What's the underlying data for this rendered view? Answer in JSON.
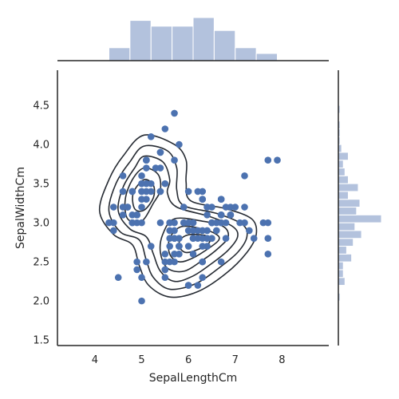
{
  "chart_data": {
    "type": "scatter",
    "title": "",
    "xlabel": "SepalLengthCm",
    "ylabel": "SepalWidthCm",
    "xlim": [
      3.2,
      9.0
    ],
    "ylim": [
      1.43,
      4.95
    ],
    "x_ticks": [
      4,
      5,
      6,
      7,
      8
    ],
    "y_ticks": [
      1.5,
      2.0,
      2.5,
      3.0,
      3.5,
      4.0,
      4.5
    ],
    "grid": false,
    "colors": {
      "points": "#4c72b0",
      "histogram": "#b3c2dd",
      "contours": "#262b33",
      "axes": "#262626"
    },
    "points": [
      [
        5.1,
        3.5
      ],
      [
        4.9,
        3.0
      ],
      [
        4.7,
        3.2
      ],
      [
        4.6,
        3.1
      ],
      [
        5.0,
        3.6
      ],
      [
        5.4,
        3.9
      ],
      [
        4.6,
        3.4
      ],
      [
        5.0,
        3.4
      ],
      [
        4.4,
        2.9
      ],
      [
        4.9,
        3.1
      ],
      [
        5.4,
        3.7
      ],
      [
        4.8,
        3.4
      ],
      [
        4.8,
        3.0
      ],
      [
        4.3,
        3.0
      ],
      [
        5.8,
        4.0
      ],
      [
        5.7,
        4.4
      ],
      [
        5.4,
        3.9
      ],
      [
        5.1,
        3.5
      ],
      [
        5.7,
        3.8
      ],
      [
        5.1,
        3.8
      ],
      [
        5.4,
        3.4
      ],
      [
        5.1,
        3.7
      ],
      [
        4.6,
        3.6
      ],
      [
        5.1,
        3.3
      ],
      [
        4.8,
        3.4
      ],
      [
        5.0,
        3.0
      ],
      [
        5.0,
        3.4
      ],
      [
        5.2,
        3.5
      ],
      [
        5.2,
        3.4
      ],
      [
        4.7,
        3.2
      ],
      [
        4.8,
        3.1
      ],
      [
        5.4,
        3.4
      ],
      [
        5.2,
        4.1
      ],
      [
        5.5,
        4.2
      ],
      [
        4.9,
        3.1
      ],
      [
        5.0,
        3.2
      ],
      [
        5.5,
        3.5
      ],
      [
        4.9,
        3.1
      ],
      [
        4.4,
        3.0
      ],
      [
        5.1,
        3.4
      ],
      [
        5.0,
        3.5
      ],
      [
        4.5,
        2.3
      ],
      [
        4.4,
        3.2
      ],
      [
        5.0,
        3.5
      ],
      [
        5.1,
        3.8
      ],
      [
        4.8,
        3.0
      ],
      [
        5.1,
        3.8
      ],
      [
        4.6,
        3.2
      ],
      [
        5.3,
        3.7
      ],
      [
        5.0,
        3.3
      ],
      [
        7.0,
        3.2
      ],
      [
        6.4,
        3.2
      ],
      [
        6.9,
        3.1
      ],
      [
        5.5,
        2.3
      ],
      [
        6.5,
        2.8
      ],
      [
        5.7,
        2.8
      ],
      [
        6.3,
        3.3
      ],
      [
        4.9,
        2.4
      ],
      [
        6.6,
        2.9
      ],
      [
        5.2,
        2.7
      ],
      [
        5.0,
        2.0
      ],
      [
        5.9,
        3.0
      ],
      [
        6.0,
        2.2
      ],
      [
        6.1,
        2.9
      ],
      [
        5.6,
        2.9
      ],
      [
        6.7,
        3.1
      ],
      [
        5.6,
        3.0
      ],
      [
        5.8,
        2.7
      ],
      [
        6.2,
        2.2
      ],
      [
        5.6,
        2.5
      ],
      [
        5.9,
        3.2
      ],
      [
        6.1,
        2.8
      ],
      [
        6.3,
        2.5
      ],
      [
        6.1,
        2.8
      ],
      [
        6.4,
        2.9
      ],
      [
        6.6,
        3.0
      ],
      [
        6.8,
        2.8
      ],
      [
        6.7,
        3.0
      ],
      [
        6.0,
        2.9
      ],
      [
        5.7,
        2.6
      ],
      [
        5.5,
        2.4
      ],
      [
        5.5,
        2.4
      ],
      [
        5.8,
        2.7
      ],
      [
        6.0,
        2.7
      ],
      [
        5.4,
        3.0
      ],
      [
        6.0,
        3.4
      ],
      [
        6.7,
        3.1
      ],
      [
        6.3,
        2.3
      ],
      [
        5.6,
        3.0
      ],
      [
        5.5,
        2.5
      ],
      [
        5.5,
        2.6
      ],
      [
        6.1,
        3.0
      ],
      [
        5.8,
        2.6
      ],
      [
        5.0,
        2.3
      ],
      [
        5.6,
        2.7
      ],
      [
        5.7,
        3.0
      ],
      [
        5.7,
        2.9
      ],
      [
        6.2,
        2.9
      ],
      [
        5.1,
        2.5
      ],
      [
        5.7,
        2.8
      ],
      [
        6.3,
        3.3
      ],
      [
        5.8,
        2.7
      ],
      [
        7.1,
        3.0
      ],
      [
        6.3,
        2.9
      ],
      [
        6.5,
        3.0
      ],
      [
        7.6,
        3.0
      ],
      [
        4.9,
        2.5
      ],
      [
        7.3,
        2.9
      ],
      [
        6.7,
        2.5
      ],
      [
        7.2,
        3.6
      ],
      [
        6.5,
        3.2
      ],
      [
        6.4,
        2.7
      ],
      [
        6.8,
        3.0
      ],
      [
        5.7,
        2.5
      ],
      [
        5.8,
        2.8
      ],
      [
        6.4,
        3.2
      ],
      [
        6.5,
        3.0
      ],
      [
        7.7,
        3.8
      ],
      [
        7.7,
        2.6
      ],
      [
        6.0,
        2.2
      ],
      [
        6.9,
        3.2
      ],
      [
        5.6,
        2.8
      ],
      [
        7.7,
        2.8
      ],
      [
        6.3,
        2.7
      ],
      [
        6.7,
        3.3
      ],
      [
        7.2,
        3.2
      ],
      [
        6.2,
        2.8
      ],
      [
        6.1,
        3.0
      ],
      [
        6.4,
        2.8
      ],
      [
        7.2,
        3.0
      ],
      [
        7.4,
        2.8
      ],
      [
        7.9,
        3.8
      ],
      [
        6.4,
        2.8
      ],
      [
        6.3,
        2.8
      ],
      [
        6.1,
        2.6
      ],
      [
        7.7,
        3.0
      ],
      [
        6.3,
        3.4
      ],
      [
        6.4,
        3.1
      ],
      [
        6.0,
        3.0
      ],
      [
        6.9,
        3.1
      ],
      [
        6.7,
        3.1
      ],
      [
        6.9,
        3.1
      ],
      [
        5.8,
        2.7
      ],
      [
        6.8,
        3.2
      ],
      [
        6.7,
        3.3
      ],
      [
        6.7,
        3.0
      ],
      [
        6.3,
        2.5
      ],
      [
        6.5,
        3.0
      ],
      [
        6.2,
        3.4
      ],
      [
        5.9,
        3.0
      ]
    ],
    "x_histogram": {
      "bins": [
        [
          4.3,
          4.75,
          9
        ],
        [
          4.75,
          5.2,
          28
        ],
        [
          5.2,
          5.65,
          24
        ],
        [
          5.65,
          6.1,
          24
        ],
        [
          6.1,
          6.55,
          30
        ],
        [
          6.55,
          7.0,
          21
        ],
        [
          7.0,
          7.45,
          9
        ],
        [
          7.45,
          7.9,
          5
        ]
      ]
    },
    "y_histogram": {
      "bins": [
        [
          2.0,
          2.1,
          1
        ],
        [
          2.1,
          2.2,
          0
        ],
        [
          2.2,
          2.3,
          4
        ],
        [
          2.3,
          2.4,
          3
        ],
        [
          2.4,
          2.5,
          3
        ],
        [
          2.5,
          2.6,
          8
        ],
        [
          2.6,
          2.7,
          5
        ],
        [
          2.7,
          2.8,
          9
        ],
        [
          2.8,
          2.9,
          14
        ],
        [
          2.9,
          3.0,
          10
        ],
        [
          3.0,
          3.1,
          26
        ],
        [
          3.1,
          3.2,
          11
        ],
        [
          3.2,
          3.3,
          13
        ],
        [
          3.3,
          3.4,
          6
        ],
        [
          3.4,
          3.5,
          12
        ],
        [
          3.5,
          3.6,
          6
        ],
        [
          3.6,
          3.7,
          4
        ],
        [
          3.7,
          3.8,
          3
        ],
        [
          3.8,
          3.9,
          6
        ],
        [
          3.9,
          4.0,
          2
        ],
        [
          4.0,
          4.1,
          1
        ],
        [
          4.1,
          4.2,
          1
        ],
        [
          4.2,
          4.3,
          1
        ],
        [
          4.3,
          4.4,
          0
        ],
        [
          4.4,
          4.5,
          1
        ]
      ]
    },
    "density_contours": [
      [
        [
          5.05,
          4.12
        ],
        [
          5.7,
          4.0
        ],
        [
          5.95,
          3.8
        ],
        [
          5.95,
          3.52
        ],
        [
          6.05,
          3.28
        ],
        [
          6.8,
          3.18
        ],
        [
          7.35,
          3.05
        ],
        [
          7.45,
          2.85
        ],
        [
          7.25,
          2.62
        ],
        [
          6.8,
          2.35
        ],
        [
          6.2,
          2.12
        ],
        [
          5.6,
          2.05
        ],
        [
          5.15,
          2.2
        ],
        [
          4.95,
          2.45
        ],
        [
          4.8,
          2.72
        ],
        [
          4.4,
          2.85
        ],
        [
          4.1,
          3.15
        ],
        [
          4.3,
          3.55
        ],
        [
          4.6,
          3.85
        ]
      ],
      [
        [
          5.05,
          3.98
        ],
        [
          5.55,
          3.92
        ],
        [
          5.75,
          3.7
        ],
        [
          5.75,
          3.42
        ],
        [
          5.9,
          3.22
        ],
        [
          6.6,
          3.12
        ],
        [
          7.15,
          2.98
        ],
        [
          7.25,
          2.82
        ],
        [
          7.05,
          2.62
        ],
        [
          6.65,
          2.42
        ],
        [
          6.15,
          2.22
        ],
        [
          5.6,
          2.15
        ],
        [
          5.25,
          2.3
        ],
        [
          5.1,
          2.52
        ],
        [
          4.95,
          2.78
        ],
        [
          4.55,
          2.88
        ],
        [
          4.3,
          3.15
        ],
        [
          4.45,
          3.5
        ],
        [
          4.75,
          3.78
        ]
      ],
      [
        [
          5.05,
          3.85
        ],
        [
          5.45,
          3.78
        ],
        [
          5.6,
          3.55
        ],
        [
          5.55,
          3.38
        ],
        [
          5.75,
          3.2
        ],
        [
          6.45,
          3.08
        ],
        [
          6.95,
          2.95
        ],
        [
          7.05,
          2.82
        ],
        [
          6.85,
          2.65
        ],
        [
          6.5,
          2.48
        ],
        [
          6.1,
          2.32
        ],
        [
          5.7,
          2.25
        ],
        [
          5.4,
          2.38
        ],
        [
          5.25,
          2.6
        ],
        [
          5.1,
          2.82
        ],
        [
          4.75,
          2.92
        ],
        [
          4.5,
          3.15
        ],
        [
          4.6,
          3.45
        ],
        [
          4.85,
          3.7
        ]
      ],
      [
        [
          5.05,
          3.7
        ],
        [
          5.35,
          3.62
        ],
        [
          5.4,
          3.42
        ],
        [
          5.25,
          3.25
        ],
        [
          5.0,
          3.02
        ],
        [
          4.7,
          3.05
        ],
        [
          4.65,
          3.3
        ],
        [
          4.8,
          3.55
        ]
      ],
      [
        [
          5.05,
          3.55
        ],
        [
          5.25,
          3.48
        ],
        [
          5.25,
          3.32
        ],
        [
          5.05,
          3.16
        ],
        [
          4.85,
          3.18
        ],
        [
          4.82,
          3.38
        ]
      ],
      [
        [
          5.7,
          3.05
        ],
        [
          6.3,
          3.02
        ],
        [
          6.75,
          2.95
        ],
        [
          6.85,
          2.82
        ],
        [
          6.65,
          2.68
        ],
        [
          6.3,
          2.52
        ],
        [
          5.9,
          2.38
        ],
        [
          5.55,
          2.42
        ],
        [
          5.4,
          2.62
        ],
        [
          5.45,
          2.85
        ]
      ],
      [
        [
          5.85,
          2.95
        ],
        [
          6.3,
          2.92
        ],
        [
          6.6,
          2.85
        ],
        [
          6.65,
          2.78
        ],
        [
          6.45,
          2.68
        ],
        [
          6.1,
          2.55
        ],
        [
          5.8,
          2.5
        ],
        [
          5.6,
          2.6
        ],
        [
          5.6,
          2.8
        ]
      ],
      [
        [
          6.05,
          2.85
        ],
        [
          6.4,
          2.83
        ],
        [
          6.45,
          2.75
        ],
        [
          6.25,
          2.67
        ],
        [
          5.95,
          2.62
        ],
        [
          5.8,
          2.7
        ],
        [
          5.85,
          2.8
        ]
      ]
    ]
  }
}
